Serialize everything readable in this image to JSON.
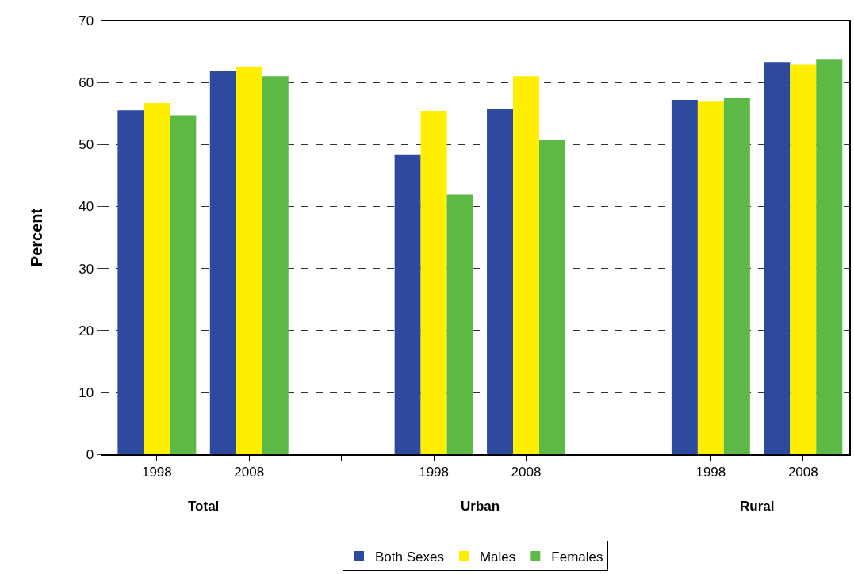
{
  "chart_data": {
    "type": "bar",
    "ylabel": "Percent",
    "categories": [
      "1998",
      "2008",
      null,
      "1998",
      "2008",
      null,
      "1998",
      "2008"
    ],
    "series": [
      {
        "name": "Both Sexes",
        "color": "#2e4a9e",
        "values": [
          55.5,
          61.8,
          null,
          48.4,
          55.7,
          null,
          57.2,
          63.3
        ]
      },
      {
        "name": "Males",
        "color": "#ffee00",
        "values": [
          56.7,
          62.6,
          null,
          55.4,
          61.0,
          null,
          56.9,
          62.9
        ]
      },
      {
        "name": "Females",
        "color": "#5cb946",
        "values": [
          54.7,
          61.0,
          null,
          41.9,
          50.7,
          null,
          57.6,
          63.7
        ]
      }
    ],
    "annotations": [
      "Total",
      "Urban",
      "Rural"
    ],
    "ylim": [
      0,
      70
    ],
    "yticks": [
      0,
      10,
      20,
      30,
      40,
      50,
      60,
      70
    ],
    "grid": "y",
    "line_style": "dashed",
    "legend": "bottom"
  }
}
